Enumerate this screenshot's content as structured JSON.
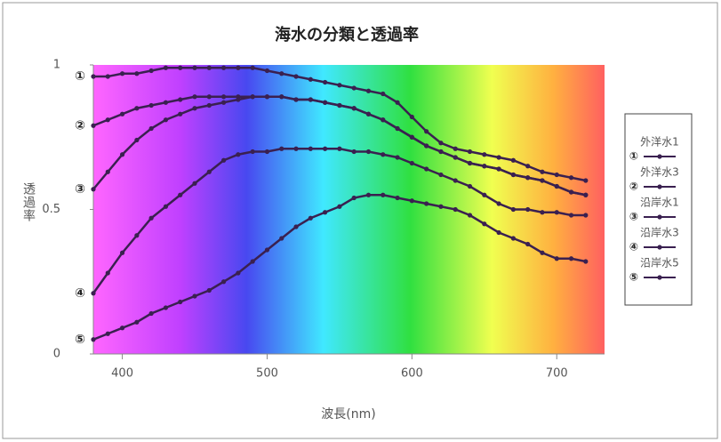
{
  "chart_data": {
    "type": "line",
    "title": "海水の分類と透過率",
    "x_label": "波長(nm)",
    "y_label": "透過率",
    "x": [
      380,
      390,
      400,
      410,
      420,
      430,
      440,
      450,
      460,
      470,
      480,
      490,
      500,
      510,
      520,
      530,
      540,
      550,
      560,
      570,
      580,
      590,
      600,
      610,
      620,
      630,
      640,
      650,
      660,
      670,
      680,
      690,
      700,
      710,
      720
    ],
    "xlim": [
      380,
      733
    ],
    "xticks": [
      400,
      500,
      600,
      700
    ],
    "ylim": [
      0,
      1
    ],
    "yticks": [
      0,
      0.5,
      1
    ],
    "series": [
      {
        "name": "外洋水1",
        "label": "①",
        "color": "#3a2050",
        "values": [
          0.96,
          0.96,
          0.97,
          0.97,
          0.98,
          0.99,
          0.99,
          0.99,
          0.99,
          0.99,
          0.99,
          0.99,
          0.98,
          0.97,
          0.96,
          0.95,
          0.94,
          0.93,
          0.92,
          0.91,
          0.9,
          0.87,
          0.82,
          0.77,
          0.73,
          0.71,
          0.7,
          0.69,
          0.68,
          0.67,
          0.65,
          0.63,
          0.62,
          0.61,
          0.6
        ]
      },
      {
        "name": "外洋水3",
        "label": "②",
        "color": "#3a2050",
        "values": [
          0.79,
          0.81,
          0.83,
          0.85,
          0.86,
          0.87,
          0.88,
          0.89,
          0.89,
          0.89,
          0.89,
          0.89,
          0.89,
          0.89,
          0.88,
          0.88,
          0.87,
          0.86,
          0.85,
          0.83,
          0.81,
          0.78,
          0.75,
          0.72,
          0.7,
          0.68,
          0.66,
          0.65,
          0.64,
          0.62,
          0.61,
          0.6,
          0.58,
          0.56,
          0.55
        ]
      },
      {
        "name": "沿岸水1",
        "label": "③",
        "color": "#3a2050",
        "values": [
          0.57,
          0.63,
          0.69,
          0.74,
          0.78,
          0.81,
          0.83,
          0.85,
          0.86,
          0.87,
          0.88,
          0.89,
          0.89,
          0.89,
          0.88,
          0.88,
          0.87,
          0.86,
          0.85,
          0.83,
          0.81,
          0.78,
          0.75,
          0.72,
          0.7,
          0.68,
          0.66,
          0.65,
          0.64,
          0.62,
          0.61,
          0.6,
          0.58,
          0.56,
          0.55
        ]
      },
      {
        "name": "沿岸水3",
        "label": "④",
        "color": "#3a2050",
        "values": [
          0.21,
          0.28,
          0.35,
          0.41,
          0.47,
          0.51,
          0.55,
          0.59,
          0.63,
          0.67,
          0.69,
          0.7,
          0.7,
          0.71,
          0.71,
          0.71,
          0.71,
          0.71,
          0.7,
          0.7,
          0.69,
          0.68,
          0.66,
          0.64,
          0.62,
          0.6,
          0.58,
          0.55,
          0.52,
          0.5,
          0.5,
          0.49,
          0.49,
          0.48,
          0.48
        ]
      },
      {
        "name": "沿岸水5",
        "label": "⑤",
        "color": "#3a2050",
        "values": [
          0.05,
          0.07,
          0.09,
          0.11,
          0.14,
          0.16,
          0.18,
          0.2,
          0.22,
          0.25,
          0.28,
          0.32,
          0.36,
          0.4,
          0.44,
          0.47,
          0.49,
          0.51,
          0.54,
          0.55,
          0.55,
          0.54,
          0.53,
          0.52,
          0.51,
          0.5,
          0.48,
          0.45,
          0.42,
          0.4,
          0.38,
          0.35,
          0.33,
          0.33,
          0.32
        ]
      }
    ]
  }
}
